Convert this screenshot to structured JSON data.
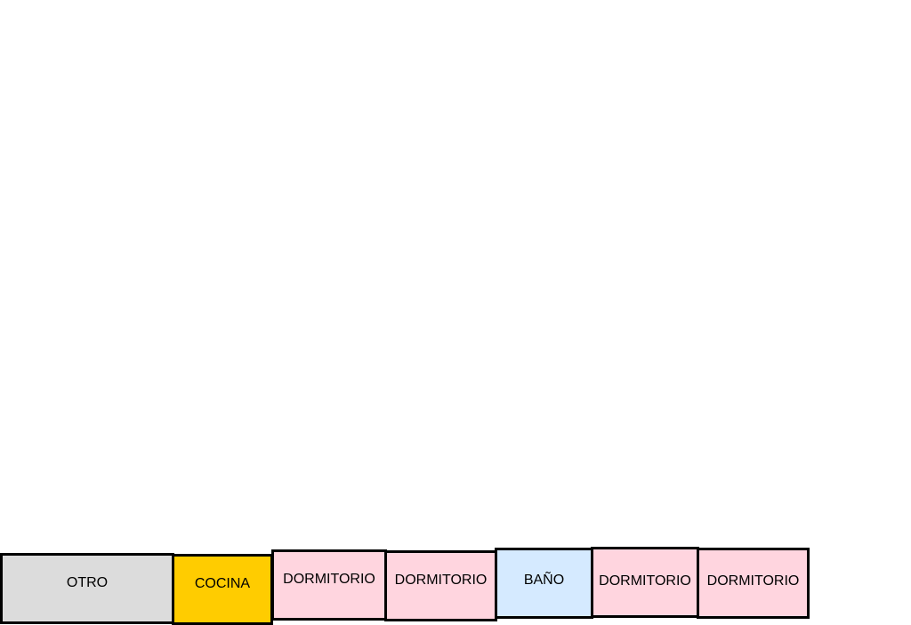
{
  "rooms": [
    {
      "label": "OTRO",
      "color": "#dcdcdc"
    },
    {
      "label": "COCINA",
      "color": "#ffcc00"
    },
    {
      "label": "DORMITORIO",
      "color": "#ffd5df"
    },
    {
      "label": "DORMITORIO",
      "color": "#ffd5df"
    },
    {
      "label": "BAÑO",
      "color": "#d5eaff"
    },
    {
      "label": "DORMITORIO",
      "color": "#ffd5df"
    },
    {
      "label": "DORMITORIO",
      "color": "#ffd5df"
    }
  ]
}
